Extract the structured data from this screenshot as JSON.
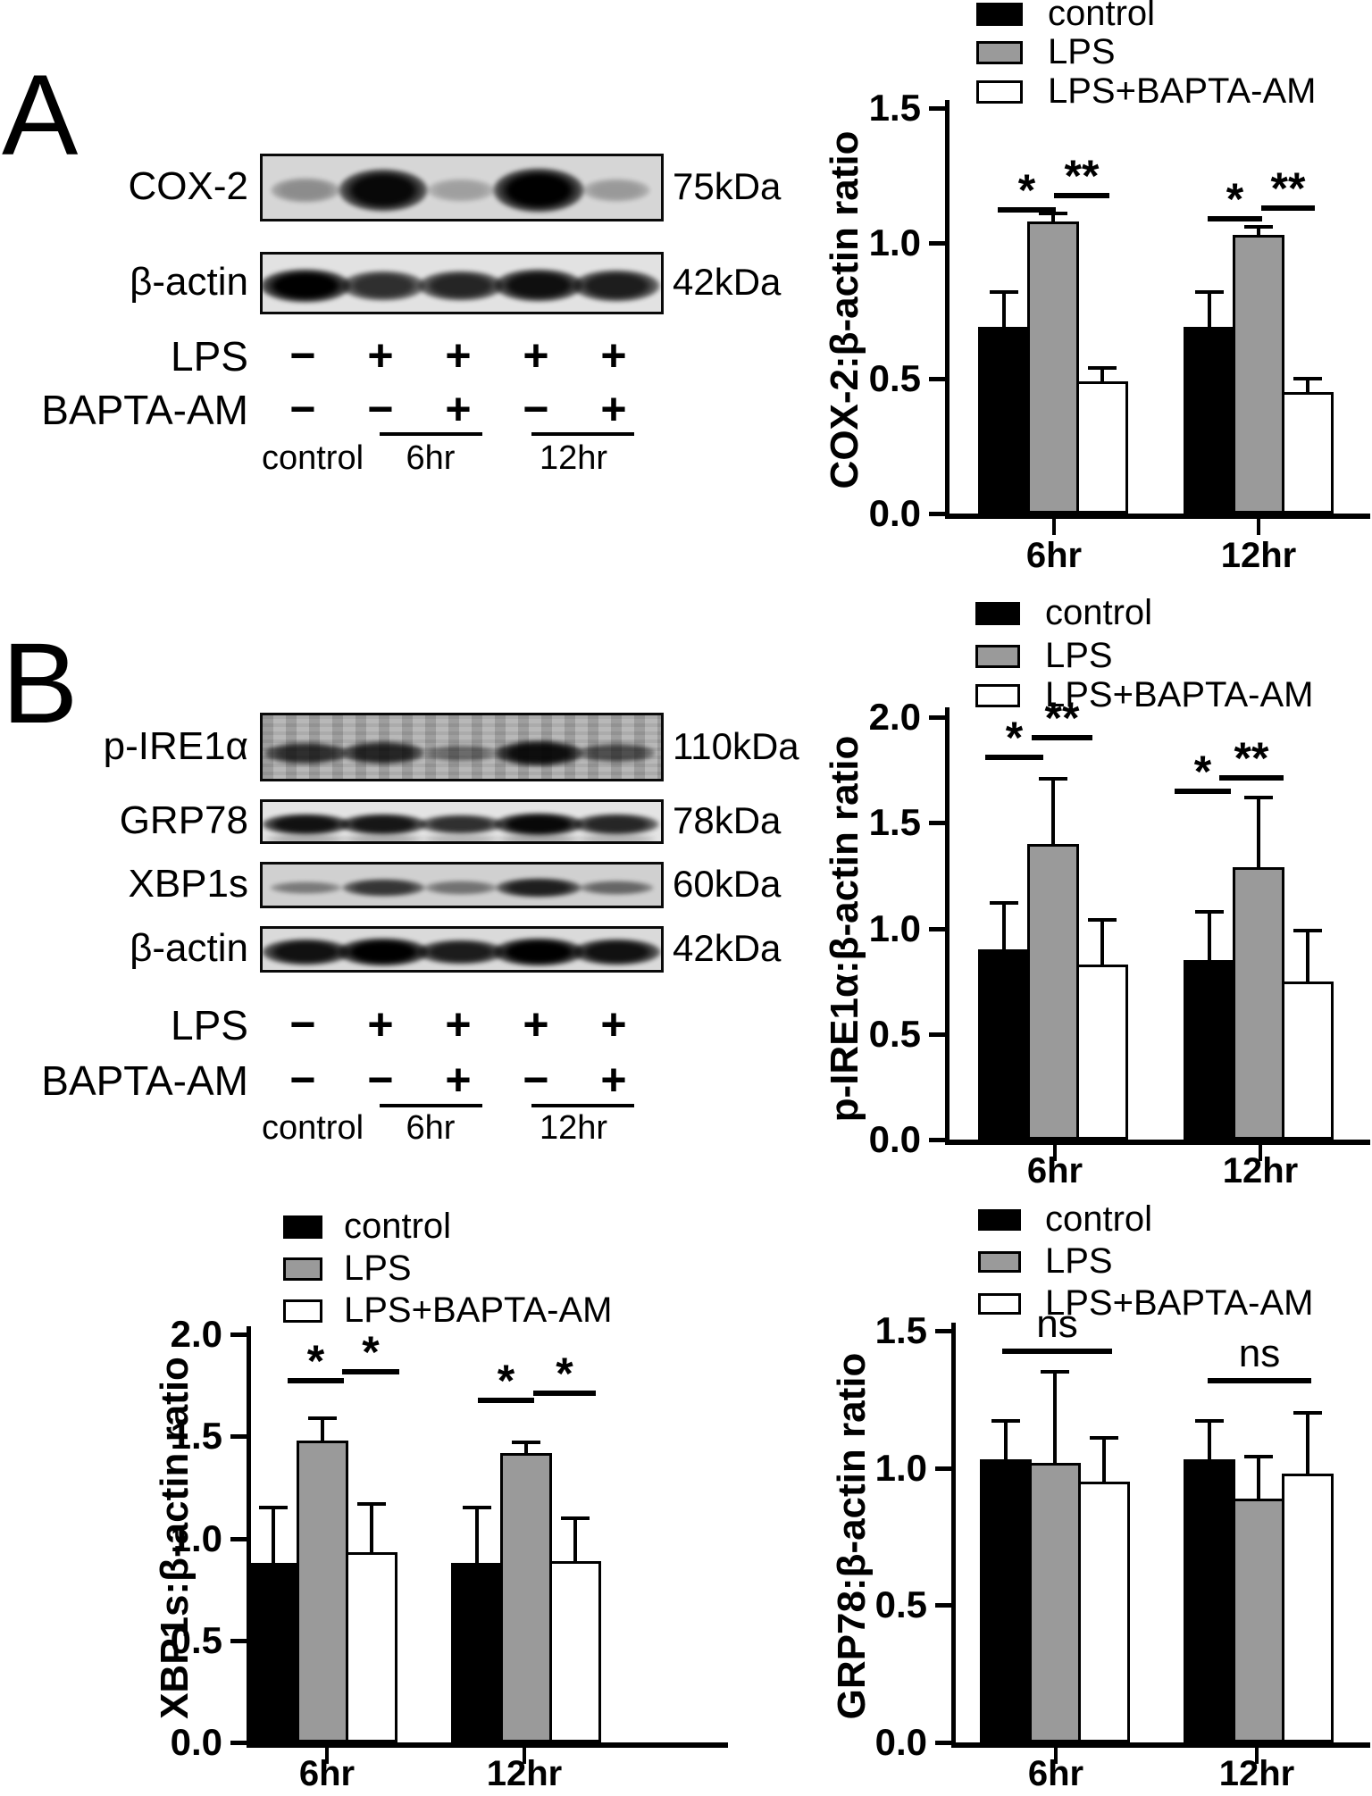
{
  "figure": {
    "panels": [
      {
        "label": "A",
        "blot_rows": [
          {
            "protein": "COX-2",
            "weight": "75kDa",
            "bands": [
              0.22,
              0.95,
              0.12,
              1.0,
              0.15
            ]
          },
          {
            "protein": "β-actin",
            "weight": "42kDa",
            "bands": [
              1.0,
              0.75,
              0.8,
              0.92,
              0.85
            ]
          }
        ],
        "conditions": [
          {
            "name": "LPS",
            "symbols": [
              "−",
              "+",
              "+",
              "+",
              "+"
            ]
          },
          {
            "name": "BAPTA-AM",
            "symbols": [
              "−",
              "−",
              "+",
              "−",
              "+"
            ]
          }
        ],
        "group_labels": [
          "control",
          "6hr",
          "12hr"
        ]
      },
      {
        "label": "B",
        "blot_rows": [
          {
            "protein": "p-IRE1α",
            "weight": "110kDa",
            "bands": [
              0.7,
              0.75,
              0.3,
              0.9,
              0.5
            ]
          },
          {
            "protein": "GRP78",
            "weight": "78kDa",
            "bands": [
              0.9,
              0.88,
              0.75,
              0.95,
              0.8
            ]
          },
          {
            "protein": "XBP1s",
            "weight": "60kDa",
            "bands": [
              0.3,
              0.7,
              0.35,
              0.82,
              0.42
            ]
          },
          {
            "protein": "β-actin",
            "weight": "42kDa",
            "bands": [
              0.9,
              1.0,
              0.85,
              1.0,
              0.9
            ]
          }
        ],
        "conditions": [
          {
            "name": "LPS",
            "symbols": [
              "−",
              "+",
              "+",
              "+",
              "+"
            ]
          },
          {
            "name": "BAPTA-AM",
            "symbols": [
              "−",
              "−",
              "+",
              "−",
              "+"
            ]
          }
        ],
        "group_labels": [
          "control",
          "6hr",
          "12hr"
        ]
      }
    ]
  },
  "chart_data": [
    {
      "type": "bar",
      "title": "",
      "ylabel": "COX-2:β-actin ratio",
      "xlabel": "",
      "categories": [
        "6hr",
        "12hr"
      ],
      "series": [
        {
          "name": "control",
          "color": "#000000",
          "values": [
            0.69,
            0.69
          ],
          "errors": [
            0.13,
            0.13
          ]
        },
        {
          "name": "LPS",
          "color": "#9a9a9a",
          "values": [
            1.08,
            1.03
          ],
          "errors": [
            0.03,
            0.03
          ]
        },
        {
          "name": "LPS+BAPTA-AM",
          "color": "#ffffff",
          "values": [
            0.49,
            0.45
          ],
          "errors": [
            0.05,
            0.05
          ]
        }
      ],
      "ylim": [
        0,
        1.5
      ],
      "yticks": [
        "0.0",
        "0.5",
        "1.0",
        "1.5"
      ],
      "grid": false,
      "legend_position": "top-right",
      "significance": [
        {
          "category": "6hr",
          "pair": [
            "control",
            "LPS"
          ],
          "label": "*"
        },
        {
          "category": "6hr",
          "pair": [
            "LPS",
            "LPS+BAPTA-AM"
          ],
          "label": "**"
        },
        {
          "category": "12hr",
          "pair": [
            "control",
            "LPS"
          ],
          "label": "*"
        },
        {
          "category": "12hr",
          "pair": [
            "LPS",
            "LPS+BAPTA-AM"
          ],
          "label": "**"
        }
      ]
    },
    {
      "type": "bar",
      "title": "",
      "ylabel": "p-IRE1α:β-actin ratio",
      "xlabel": "",
      "categories": [
        "6hr",
        "12hr"
      ],
      "series": [
        {
          "name": "control",
          "color": "#000000",
          "values": [
            0.9,
            0.85
          ],
          "errors": [
            0.22,
            0.23
          ]
        },
        {
          "name": "LPS",
          "color": "#9a9a9a",
          "values": [
            1.4,
            1.29
          ],
          "errors": [
            0.31,
            0.33
          ]
        },
        {
          "name": "LPS+BAPTA-AM",
          "color": "#ffffff",
          "values": [
            0.83,
            0.75
          ],
          "errors": [
            0.21,
            0.24
          ]
        }
      ],
      "ylim": [
        0,
        2.0
      ],
      "yticks": [
        "0.0",
        "0.5",
        "1.0",
        "1.5",
        "2.0"
      ],
      "grid": false,
      "legend_position": "top-right",
      "significance": [
        {
          "category": "6hr",
          "pair": [
            "control",
            "LPS"
          ],
          "label": "*"
        },
        {
          "category": "6hr",
          "pair": [
            "LPS",
            "LPS+BAPTA-AM"
          ],
          "label": "**"
        },
        {
          "category": "12hr",
          "pair": [
            "control",
            "LPS"
          ],
          "label": "*"
        },
        {
          "category": "12hr",
          "pair": [
            "LPS",
            "LPS+BAPTA-AM"
          ],
          "label": "**"
        }
      ]
    },
    {
      "type": "bar",
      "title": "",
      "ylabel": "XBP1s:β-actin ratio",
      "xlabel": "",
      "categories": [
        "6hr",
        "12hr"
      ],
      "series": [
        {
          "name": "control",
          "color": "#000000",
          "values": [
            0.88,
            0.88
          ],
          "errors": [
            0.27,
            0.27
          ]
        },
        {
          "name": "LPS",
          "color": "#9a9a9a",
          "values": [
            1.48,
            1.42
          ],
          "errors": [
            0.11,
            0.05
          ]
        },
        {
          "name": "LPS+BAPTA-AM",
          "color": "#ffffff",
          "values": [
            0.93,
            0.89
          ],
          "errors": [
            0.24,
            0.21
          ]
        }
      ],
      "ylim": [
        0,
        2.0
      ],
      "yticks": [
        "0.0",
        "0.5",
        "1.0",
        "1.5",
        "2.0"
      ],
      "grid": false,
      "legend_position": "top-left",
      "significance": [
        {
          "category": "6hr",
          "pair": [
            "control",
            "LPS"
          ],
          "label": "*"
        },
        {
          "category": "6hr",
          "pair": [
            "LPS",
            "LPS+BAPTA-AM"
          ],
          "label": "*"
        },
        {
          "category": "12hr",
          "pair": [
            "control",
            "LPS"
          ],
          "label": "*"
        },
        {
          "category": "12hr",
          "pair": [
            "LPS",
            "LPS+BAPTA-AM"
          ],
          "label": "*"
        }
      ]
    },
    {
      "type": "bar",
      "title": "",
      "ylabel": "GRP78:β-actin ratio",
      "xlabel": "",
      "categories": [
        "6hr",
        "12hr"
      ],
      "series": [
        {
          "name": "control",
          "color": "#000000",
          "values": [
            1.03,
            1.03
          ],
          "errors": [
            0.14,
            0.14
          ]
        },
        {
          "name": "LPS",
          "color": "#9a9a9a",
          "values": [
            1.02,
            0.89
          ],
          "errors": [
            0.33,
            0.15
          ]
        },
        {
          "name": "LPS+BAPTA-AM",
          "color": "#ffffff",
          "values": [
            0.95,
            0.98
          ],
          "errors": [
            0.16,
            0.22
          ]
        }
      ],
      "ylim": [
        0,
        1.5
      ],
      "yticks": [
        "0.0",
        "0.5",
        "1.0",
        "1.5"
      ],
      "grid": false,
      "legend_position": "top-right",
      "significance": [
        {
          "category": "6hr",
          "pair": [
            "control",
            "LPS+BAPTA-AM"
          ],
          "label": "ns"
        },
        {
          "category": "12hr",
          "pair": [
            "control",
            "LPS+BAPTA-AM"
          ],
          "label": "ns"
        }
      ]
    }
  ]
}
